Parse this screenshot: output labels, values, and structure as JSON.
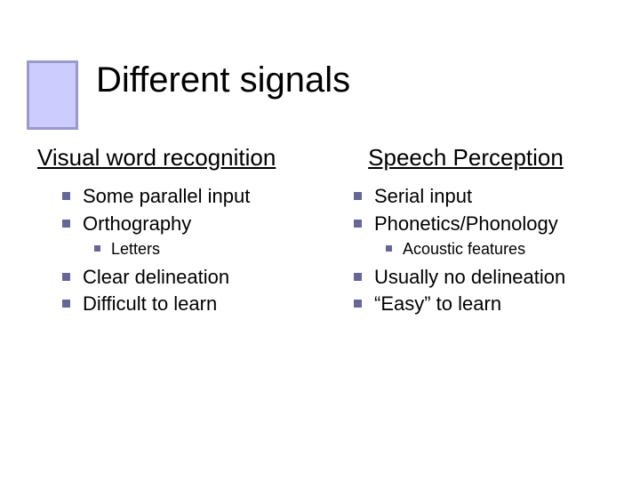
{
  "title": "Different signals",
  "accent": {
    "border_color": "#9999cc",
    "bg_color": "#ccccff"
  },
  "bullet_color": "#666699",
  "title_fontsize": 40,
  "heading_fontsize": 26,
  "body_fontsize": 22,
  "sub_fontsize": 18,
  "left": {
    "heading": "Visual word recognition",
    "items": [
      {
        "text": "Some parallel input"
      },
      {
        "text": "Orthography",
        "sub": [
          {
            "text": "Letters"
          }
        ]
      },
      {
        "text": "Clear delineation"
      },
      {
        "text": "Difficult to learn"
      }
    ]
  },
  "right": {
    "heading": "Speech Perception",
    "items": [
      {
        "text": "Serial input"
      },
      {
        "text": "Phonetics/Phonology",
        "sub": [
          {
            "text": "Acoustic features"
          }
        ]
      },
      {
        "text": "Usually no delineation"
      },
      {
        "text": "“Easy” to learn"
      }
    ]
  }
}
